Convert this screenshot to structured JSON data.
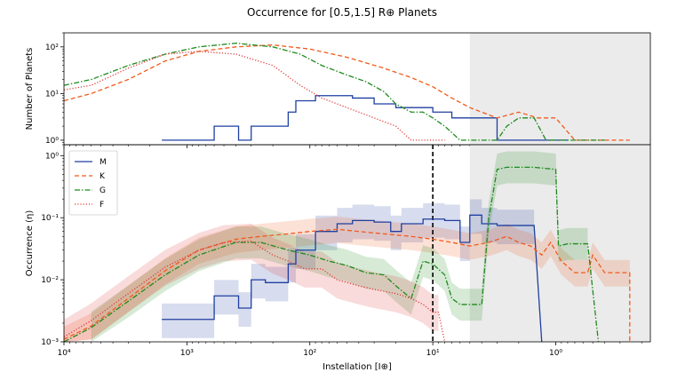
{
  "title": "Occurrence for [0.5,1.5] R⊕ Planets",
  "xlabel": "Instellation [I⊕]",
  "colors": {
    "M": "#1f3fa0",
    "K": "#f05a1c",
    "G": "#1e8a1e",
    "F": "#e03a3a",
    "shade": "#ebebeb"
  },
  "chart_data": [
    {
      "type": "line",
      "panel": "top",
      "ylabel": "Number of Planets",
      "yscale": "log",
      "ylim": [
        0.8,
        200
      ],
      "xscale": "log",
      "x_inverted": true,
      "xlim": [
        10000,
        0.17
      ],
      "yticks": [
        {
          "v": 1,
          "label": "10⁰"
        },
        {
          "v": 10,
          "label": "10¹"
        },
        {
          "v": 100,
          "label": "10²"
        }
      ],
      "shaded_region": {
        "from": 5,
        "to": 0.17
      },
      "series": [
        {
          "name": "M",
          "style": "solid",
          "points": [
            [
              1600,
              1
            ],
            [
              600,
              1
            ],
            [
              600,
              2
            ],
            [
              380,
              2
            ],
            [
              380,
              1
            ],
            [
              300,
              1
            ],
            [
              300,
              2
            ],
            [
              150,
              2
            ],
            [
              150,
              4
            ],
            [
              130,
              4
            ],
            [
              130,
              7
            ],
            [
              90,
              7
            ],
            [
              90,
              9
            ],
            [
              45,
              9
            ],
            [
              45,
              8
            ],
            [
              30,
              8
            ],
            [
              30,
              6
            ],
            [
              20,
              6
            ],
            [
              20,
              5
            ],
            [
              10,
              5
            ],
            [
              10,
              4
            ],
            [
              7,
              4
            ],
            [
              7,
              3
            ],
            [
              3,
              3
            ],
            [
              3,
              1
            ],
            [
              0.8,
              1
            ]
          ]
        },
        {
          "name": "K",
          "style": "dashed",
          "points": [
            [
              10000,
              7
            ],
            [
              6000,
              10
            ],
            [
              3000,
              20
            ],
            [
              1500,
              50
            ],
            [
              800,
              80
            ],
            [
              400,
              100
            ],
            [
              200,
              110
            ],
            [
              100,
              90
            ],
            [
              50,
              60
            ],
            [
              25,
              35
            ],
            [
              15,
              22
            ],
            [
              10,
              14
            ],
            [
              7,
              8
            ],
            [
              5,
              5
            ],
            [
              3,
              3
            ],
            [
              2,
              4
            ],
            [
              1.4,
              3
            ],
            [
              1,
              3
            ],
            [
              0.7,
              1
            ],
            [
              0.35,
              1
            ],
            [
              0.25,
              1
            ]
          ]
        },
        {
          "name": "G",
          "style": "dashdot",
          "points": [
            [
              10000,
              15
            ],
            [
              6000,
              20
            ],
            [
              3000,
              40
            ],
            [
              1500,
              70
            ],
            [
              800,
              100
            ],
            [
              400,
              120
            ],
            [
              200,
              100
            ],
            [
              120,
              70
            ],
            [
              80,
              40
            ],
            [
              50,
              25
            ],
            [
              35,
              18
            ],
            [
              25,
              11
            ],
            [
              20,
              6
            ],
            [
              15,
              4
            ],
            [
              12,
              4
            ],
            [
              10,
              3
            ],
            [
              8,
              2
            ],
            [
              6,
              1
            ],
            [
              4,
              1
            ],
            [
              3,
              1
            ],
            [
              2.5,
              2
            ],
            [
              2,
              3
            ],
            [
              1.5,
              3
            ],
            [
              1.2,
              1
            ],
            [
              0.7,
              1
            ],
            [
              0.5,
              1
            ],
            [
              0.4,
              1
            ]
          ]
        },
        {
          "name": "F",
          "style": "dotted",
          "points": [
            [
              10000,
              12
            ],
            [
              6000,
              15
            ],
            [
              3000,
              35
            ],
            [
              1500,
              70
            ],
            [
              800,
              80
            ],
            [
              400,
              70
            ],
            [
              200,
              40
            ],
            [
              120,
              15
            ],
            [
              80,
              8
            ],
            [
              50,
              5
            ],
            [
              30,
              3
            ],
            [
              20,
              2
            ],
            [
              15,
              1
            ],
            [
              12,
              1
            ],
            [
              10,
              1
            ],
            [
              8,
              1
            ]
          ]
        }
      ]
    },
    {
      "type": "line",
      "panel": "bottom",
      "ylabel": "Occurrence (η)",
      "yscale": "log",
      "ylim": [
        0.001,
        1.5
      ],
      "xscale": "log",
      "x_inverted": true,
      "xlim": [
        10000,
        0.17
      ],
      "yticks": [
        {
          "v": 0.001,
          "label": "10⁻³"
        },
        {
          "v": 0.01,
          "label": "10⁻²"
        },
        {
          "v": 0.1,
          "label": "10⁻¹"
        },
        {
          "v": 1,
          "label": "10⁰"
        }
      ],
      "xticks": [
        {
          "v": 10000,
          "label": "10⁴"
        },
        {
          "v": 1000,
          "label": "10³"
        },
        {
          "v": 100,
          "label": "10²"
        },
        {
          "v": 10,
          "label": "10¹"
        },
        {
          "v": 1,
          "label": "10⁰"
        }
      ],
      "vline": 10,
      "shaded_region": {
        "from": 5,
        "to": 0.17
      },
      "legend": {
        "location": "upper-left",
        "entries": [
          "M",
          "K",
          "G",
          "F"
        ]
      },
      "series": [
        {
          "name": "M",
          "style": "solid",
          "points": [
            [
              1600,
              0.0023
            ],
            [
              600,
              0.0023
            ],
            [
              600,
              0.0055
            ],
            [
              380,
              0.0055
            ],
            [
              380,
              0.0035
            ],
            [
              300,
              0.0035
            ],
            [
              300,
              0.01
            ],
            [
              230,
              0.01
            ],
            [
              230,
              0.009
            ],
            [
              150,
              0.009
            ],
            [
              150,
              0.018
            ],
            [
              130,
              0.018
            ],
            [
              130,
              0.03
            ],
            [
              90,
              0.03
            ],
            [
              90,
              0.06
            ],
            [
              60,
              0.06
            ],
            [
              60,
              0.08
            ],
            [
              45,
              0.08
            ],
            [
              45,
              0.09
            ],
            [
              30,
              0.09
            ],
            [
              30,
              0.085
            ],
            [
              22,
              0.085
            ],
            [
              22,
              0.06
            ],
            [
              18,
              0.06
            ],
            [
              18,
              0.08
            ],
            [
              12,
              0.08
            ],
            [
              12,
              0.095
            ],
            [
              8,
              0.095
            ],
            [
              8,
              0.09
            ],
            [
              6,
              0.09
            ],
            [
              6,
              0.04
            ],
            [
              5,
              0.04
            ],
            [
              5,
              0.11
            ],
            [
              4,
              0.11
            ],
            [
              4,
              0.08
            ],
            [
              3,
              0.08
            ],
            [
              3,
              0.075
            ],
            [
              1.5,
              0.075
            ],
            [
              1.3,
              0.001
            ]
          ],
          "band": [
            0.5,
            1.8
          ]
        },
        {
          "name": "K",
          "style": "dashed",
          "points": [
            [
              10000,
              0.0011
            ],
            [
              6000,
              0.0018
            ],
            [
              3000,
              0.005
            ],
            [
              1500,
              0.014
            ],
            [
              800,
              0.03
            ],
            [
              400,
              0.045
            ],
            [
              250,
              0.05
            ],
            [
              150,
              0.055
            ],
            [
              100,
              0.06
            ],
            [
              60,
              0.065
            ],
            [
              40,
              0.06
            ],
            [
              25,
              0.055
            ],
            [
              15,
              0.05
            ],
            [
              10,
              0.045
            ],
            [
              7,
              0.04
            ],
            [
              5,
              0.035
            ],
            [
              3.5,
              0.04
            ],
            [
              2.5,
              0.05
            ],
            [
              2,
              0.04
            ],
            [
              1.6,
              0.035
            ],
            [
              1.3,
              0.025
            ],
            [
              1.1,
              0.04
            ],
            [
              0.9,
              0.02
            ],
            [
              0.7,
              0.013
            ],
            [
              0.55,
              0.013
            ],
            [
              0.5,
              0.025
            ],
            [
              0.4,
              0.013
            ],
            [
              0.25,
              0.013
            ],
            [
              0.25,
              0.001
            ]
          ],
          "band": [
            0.6,
            1.6
          ]
        },
        {
          "name": "G",
          "style": "dashdot",
          "points": [
            [
              10000,
              0.001
            ],
            [
              6000,
              0.0017
            ],
            [
              3000,
              0.0045
            ],
            [
              1500,
              0.012
            ],
            [
              800,
              0.025
            ],
            [
              400,
              0.04
            ],
            [
              250,
              0.04
            ],
            [
              150,
              0.03
            ],
            [
              100,
              0.025
            ],
            [
              70,
              0.02
            ],
            [
              50,
              0.017
            ],
            [
              35,
              0.013
            ],
            [
              25,
              0.012
            ],
            [
              20,
              0.008
            ],
            [
              15,
              0.005
            ],
            [
              12,
              0.02
            ],
            [
              10,
              0.018
            ],
            [
              8,
              0.012
            ],
            [
              7,
              0.005
            ],
            [
              6,
              0.004
            ],
            [
              4,
              0.004
            ],
            [
              3.5,
              0.1
            ],
            [
              3,
              0.6
            ],
            [
              2.5,
              0.65
            ],
            [
              1.5,
              0.65
            ],
            [
              1,
              0.6
            ],
            [
              0.95,
              0.035
            ],
            [
              0.8,
              0.038
            ],
            [
              0.55,
              0.038
            ],
            [
              0.45,
              0.001
            ]
          ],
          "band": [
            0.55,
            1.8
          ]
        },
        {
          "name": "F",
          "style": "dotted",
          "points": [
            [
              10000,
              0.0012
            ],
            [
              6000,
              0.0022
            ],
            [
              3000,
              0.006
            ],
            [
              1500,
              0.016
            ],
            [
              800,
              0.03
            ],
            [
              500,
              0.04
            ],
            [
              300,
              0.042
            ],
            [
              200,
              0.025
            ],
            [
              150,
              0.02
            ],
            [
              110,
              0.015
            ],
            [
              80,
              0.015
            ],
            [
              60,
              0.01
            ],
            [
              40,
              0.008
            ],
            [
              30,
              0.007
            ],
            [
              20,
              0.006
            ],
            [
              15,
              0.005
            ],
            [
              12,
              0.004
            ],
            [
              10,
              0.003
            ],
            [
              9,
              0.003
            ],
            [
              8,
              0.001
            ]
          ],
          "band": [
            0.5,
            1.9
          ]
        }
      ]
    }
  ]
}
